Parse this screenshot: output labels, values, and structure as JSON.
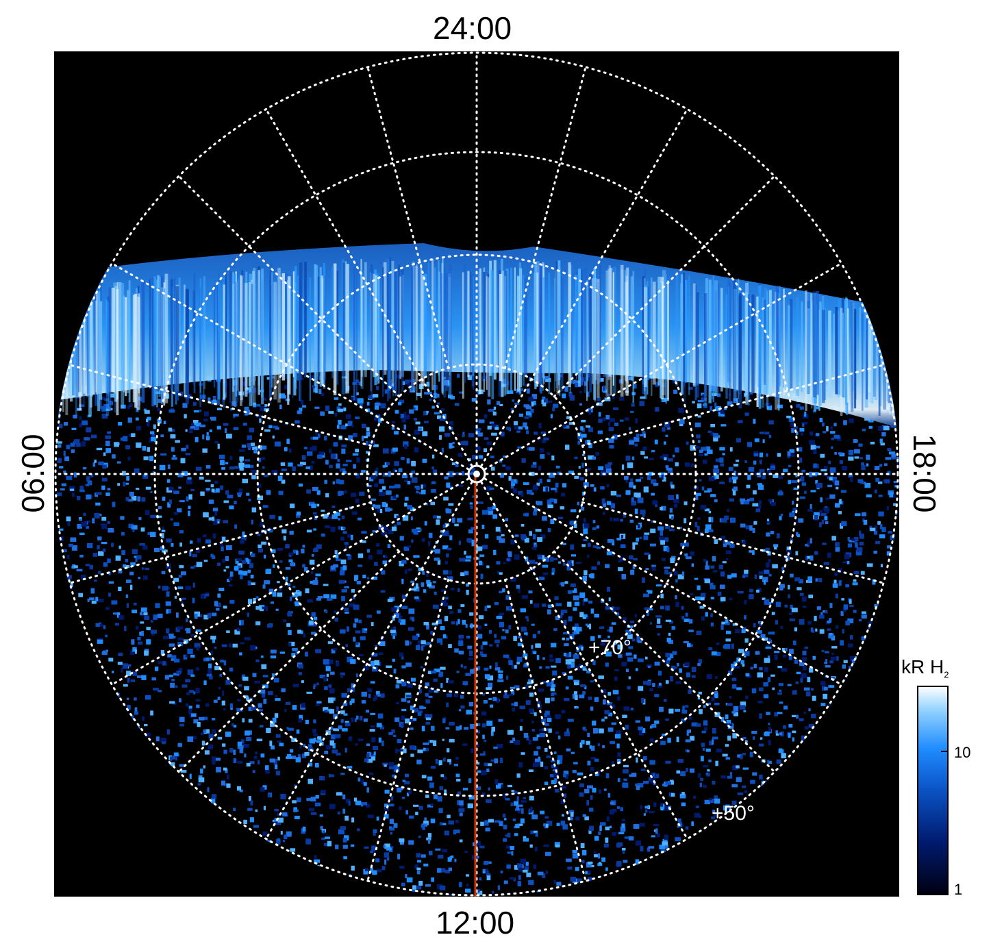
{
  "local_time_labels": {
    "top": "24:00",
    "bottom": "12:00",
    "left": "06:00",
    "right": "18:00"
  },
  "latitude_labels": {
    "inner": "+70°",
    "outer": "+50°"
  },
  "colorbar": {
    "title_main": "kR H",
    "title_sub": "2",
    "ticks": [
      "10",
      "1"
    ],
    "colors": [
      "#000010",
      "#001a6e",
      "#0a52c4",
      "#1f8cff",
      "#8ed0ff",
      "#ffffff"
    ]
  },
  "colors": {
    "background": "#000000",
    "grid": "#ffffff",
    "meridian_line": "#cc3300"
  }
}
